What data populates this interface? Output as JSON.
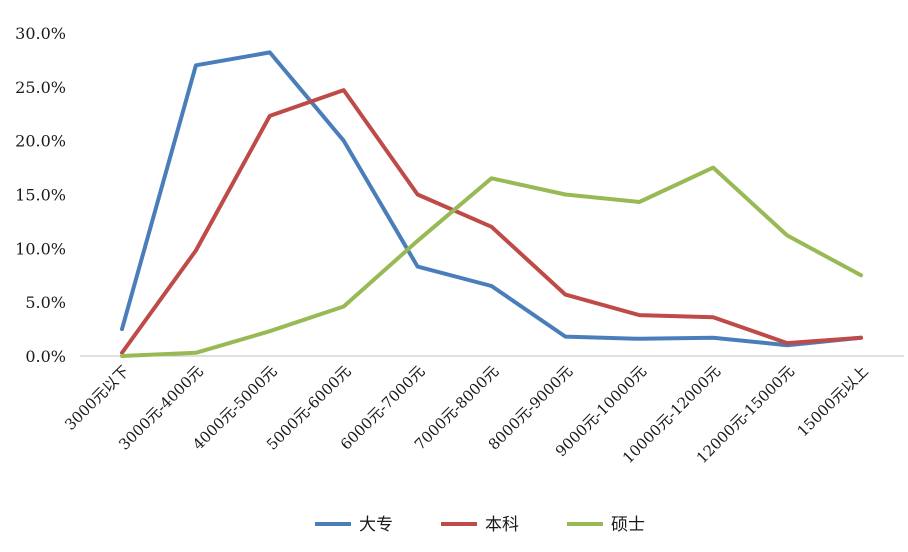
{
  "chart_data": {
    "type": "line",
    "categories": [
      "3000元以下",
      "3000元-4000元",
      "4000元-5000元",
      "5000元-6000元",
      "6000元-7000元",
      "7000元-8000元",
      "8000元-9000元",
      "9000元-10000元",
      "10000元-12000元",
      "12000元-15000元",
      "15000元以上"
    ],
    "series": [
      {
        "name": "大专",
        "color": "#4a7ebb",
        "values": [
          2.5,
          27.0,
          28.2,
          20.0,
          8.3,
          6.5,
          1.8,
          1.6,
          1.7,
          1.0,
          1.7
        ]
      },
      {
        "name": "本科",
        "color": "#be4b48",
        "values": [
          0.3,
          9.8,
          22.3,
          24.7,
          15.0,
          12.0,
          5.7,
          3.8,
          3.6,
          1.2,
          1.7
        ]
      },
      {
        "name": "硕士",
        "color": "#98b954",
        "values": [
          0.0,
          0.3,
          2.3,
          4.6,
          10.7,
          16.5,
          15.0,
          14.3,
          17.5,
          11.2,
          7.5
        ]
      }
    ],
    "ylim": [
      0,
      30
    ],
    "yticks": [
      "0.0%",
      "5.0%",
      "10.0%",
      "15.0%",
      "20.0%",
      "25.0%",
      "30.0%"
    ],
    "grid": false,
    "legend_position": "bottom"
  }
}
